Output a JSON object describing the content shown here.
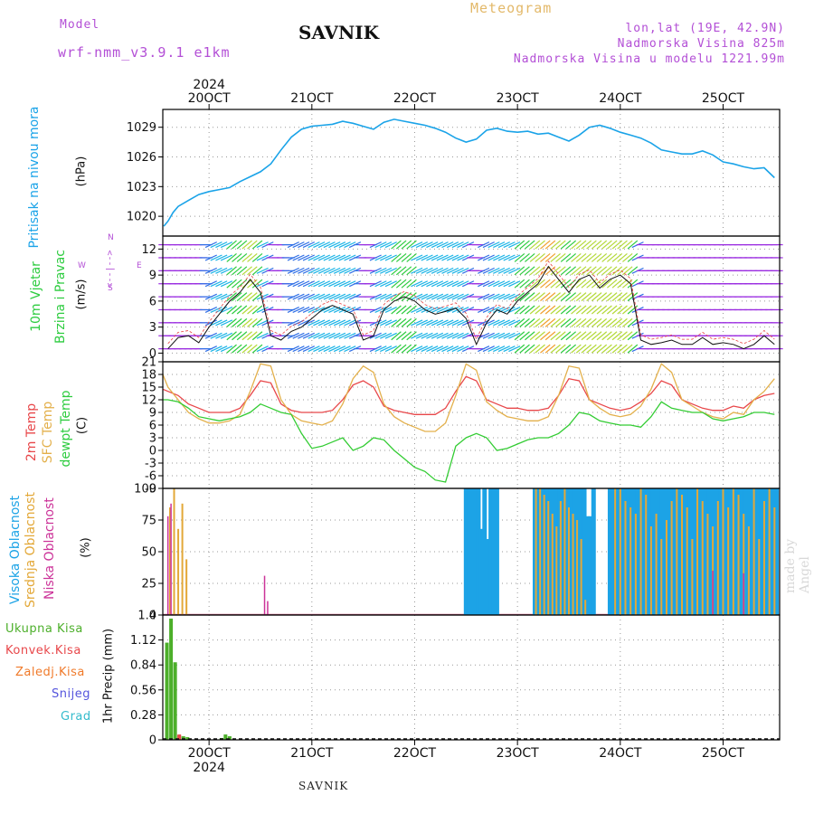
{
  "header": {
    "model_label": "Model",
    "model_name": "wrf-nmm_v3.9.1  e1km",
    "station": "SAVNIK",
    "chart_title": "Meteogram",
    "lonlat": "lon,lat (19E, 42.9N)",
    "elevation": "Nadmorska Visina 825m",
    "model_elevation": "Nadmorska Visina u modelu 1221.99m",
    "footer_station": "SAVNIK",
    "watermark": "made by Angel"
  },
  "colors": {
    "pressure": "#1aa3e8",
    "temp2m": "#e8474a",
    "sfc_temp": "#e3b04b",
    "dewpoint": "#33cc33",
    "high_cloud": "#1ca3e6",
    "mid_cloud": "#e3a838",
    "low_cloud": "#cc3399",
    "total_precip": "#4caf2a",
    "conv_precip": "#e8474a",
    "frozen_precip": "#f07a2a",
    "snow": "#5555dd",
    "grad": "#33bbcc",
    "grid": "#999999"
  },
  "x_axis": {
    "top_year": "2024",
    "bottom_year": "2024",
    "day_labels": [
      "20OCT",
      "21OCT",
      "22OCT",
      "23OCT",
      "24OCT",
      "25OCT"
    ],
    "day_positions": [
      20,
      21,
      22,
      23,
      24,
      25
    ],
    "range": [
      19.55,
      25.55
    ]
  },
  "panels": {
    "pressure": {
      "label": "Pritisak na nivou mora",
      "unit": "(hPa)"
    },
    "wind": {
      "label_line1": "10m Vjetar",
      "label_line2": "Brzina i Pravac",
      "unit": "(m/s)",
      "compass_n": "N",
      "compass_s": "S",
      "compass_e": "E",
      "compass_w": "W",
      "compass_arrow": "<--|-->"
    },
    "temperature": {
      "label_2m": "2m Temp",
      "label_sfc": "SFC Temp",
      "label_dew": "dewpt Temp",
      "unit": "(C)"
    },
    "clouds": {
      "label_high": "Visoka Oblacnost",
      "label_mid": "Srednja Oblacnost",
      "label_low": "Niska Oblacnost",
      "unit": "(%)"
    },
    "precip": {
      "legend": [
        "Ukupna Kisa",
        "Konvek.Kisa",
        "Zaledj.Kisa",
        "Snijeg",
        "Grad"
      ],
      "unit": "1hr Precip (mm)"
    }
  },
  "chart_data": [
    {
      "type": "line",
      "name": "pressure",
      "ylim": [
        1018,
        1030.8
      ],
      "yticks": [
        1020,
        1023,
        1026,
        1029
      ],
      "x": [
        19.56,
        19.6,
        19.65,
        19.7,
        19.8,
        19.9,
        20.0,
        20.1,
        20.2,
        20.3,
        20.4,
        20.5,
        20.6,
        20.7,
        20.8,
        20.9,
        21.0,
        21.1,
        21.2,
        21.3,
        21.4,
        21.5,
        21.6,
        21.7,
        21.8,
        21.9,
        22.0,
        22.1,
        22.2,
        22.3,
        22.4,
        22.5,
        22.6,
        22.7,
        22.8,
        22.9,
        23.0,
        23.1,
        23.2,
        23.3,
        23.4,
        23.5,
        23.6,
        23.7,
        23.8,
        23.9,
        24.0,
        24.1,
        24.2,
        24.3,
        24.4,
        24.5,
        24.6,
        24.7,
        24.8,
        24.9,
        25.0,
        25.1,
        25.2,
        25.3,
        25.4,
        25.5
      ],
      "series": [
        {
          "values": [
            1019.0,
            1019.5,
            1020.4,
            1021.0,
            1021.6,
            1022.2,
            1022.5,
            1022.7,
            1022.9,
            1023.5,
            1024.0,
            1024.5,
            1025.3,
            1026.7,
            1028.0,
            1028.8,
            1029.1,
            1029.2,
            1029.3,
            1029.6,
            1029.4,
            1029.1,
            1028.8,
            1029.5,
            1029.8,
            1029.6,
            1029.4,
            1029.2,
            1028.9,
            1028.5,
            1027.9,
            1027.5,
            1027.8,
            1028.7,
            1028.9,
            1028.6,
            1028.5,
            1028.6,
            1028.3,
            1028.4,
            1028.0,
            1027.6,
            1028.2,
            1029.0,
            1029.2,
            1028.9,
            1028.5,
            1028.2,
            1027.9,
            1027.4,
            1026.7,
            1026.5,
            1026.3,
            1026.3,
            1026.6,
            1026.2,
            1025.5,
            1025.3,
            1025.0,
            1024.8,
            1024.9,
            1023.9
          ]
        }
      ]
    },
    {
      "type": "line",
      "name": "wind_speed",
      "ylim": [
        -1,
        13.5
      ],
      "yticks": [
        0,
        3,
        6,
        9,
        12
      ],
      "x": [
        19.6,
        19.7,
        19.8,
        19.9,
        20.0,
        20.1,
        20.2,
        20.3,
        20.4,
        20.5,
        20.6,
        20.7,
        20.8,
        20.9,
        21.0,
        21.1,
        21.2,
        21.3,
        21.4,
        21.5,
        21.6,
        21.7,
        21.8,
        21.9,
        22.0,
        22.1,
        22.2,
        22.3,
        22.4,
        22.5,
        22.6,
        22.7,
        22.8,
        22.9,
        23.0,
        23.1,
        23.2,
        23.3,
        23.4,
        23.5,
        23.6,
        23.7,
        23.8,
        23.9,
        24.0,
        24.1,
        24.2,
        24.3,
        24.4,
        24.5,
        24.6,
        24.7,
        24.8,
        24.9,
        25.0,
        25.1,
        25.2,
        25.3,
        25.4,
        25.5
      ],
      "series": [
        {
          "values": [
            0.5,
            1.8,
            2.0,
            1.2,
            3.0,
            4.5,
            6.0,
            7.0,
            8.5,
            7.0,
            2.0,
            1.5,
            2.5,
            3.0,
            4.0,
            5.0,
            5.5,
            5.0,
            4.5,
            1.5,
            2.0,
            5.0,
            6.0,
            6.5,
            6.0,
            5.0,
            4.5,
            4.8,
            5.2,
            4.0,
            1.0,
            3.5,
            5.0,
            4.5,
            6.0,
            7.0,
            8.0,
            10.0,
            8.5,
            7.0,
            8.5,
            9.0,
            7.5,
            8.5,
            9.0,
            8.0,
            1.5,
            1.0,
            1.2,
            1.5,
            1.0,
            1.0,
            1.8,
            1.0,
            1.2,
            1.0,
            0.5,
            1.0,
            2.0,
            1.0
          ]
        }
      ]
    },
    {
      "type": "line",
      "name": "temperature",
      "ylim": [
        -9,
        21
      ],
      "yticks": [
        -9,
        -6,
        -3,
        0,
        3,
        6,
        9,
        12,
        15,
        18,
        21
      ],
      "x": [
        19.55,
        19.6,
        19.7,
        19.8,
        19.9,
        20.0,
        20.1,
        20.2,
        20.3,
        20.4,
        20.5,
        20.6,
        20.7,
        20.8,
        20.9,
        21.0,
        21.1,
        21.2,
        21.3,
        21.4,
        21.5,
        21.6,
        21.7,
        21.8,
        21.9,
        22.0,
        22.1,
        22.2,
        22.3,
        22.4,
        22.5,
        22.6,
        22.7,
        22.8,
        22.9,
        23.0,
        23.1,
        23.2,
        23.3,
        23.4,
        23.5,
        23.6,
        23.7,
        23.8,
        23.9,
        24.0,
        24.1,
        24.2,
        24.3,
        24.4,
        24.5,
        24.6,
        24.7,
        24.8,
        24.9,
        25.0,
        25.1,
        25.2,
        25.3,
        25.4,
        25.5
      ],
      "series": [
        {
          "name": "2m Temp",
          "values": [
            14.5,
            14,
            13,
            11,
            10,
            9,
            9,
            9,
            10,
            13,
            16.5,
            16,
            11,
            9.5,
            9,
            9,
            9,
            9.5,
            12,
            15.5,
            16.5,
            15,
            10.5,
            9.5,
            9,
            8.5,
            8.5,
            8.5,
            10,
            14,
            17.5,
            16.5,
            12,
            11,
            10,
            10,
            9.5,
            9.5,
            10,
            13,
            17,
            16.5,
            12,
            11,
            10,
            9.5,
            10,
            11.5,
            13.5,
            16.5,
            15.5,
            12,
            11,
            10,
            9.5,
            9.5,
            10.5,
            10,
            12,
            13,
            13.5
          ]
        },
        {
          "name": "SFC Temp",
          "values": [
            18,
            15,
            12,
            9,
            7.5,
            6.5,
            6.5,
            7,
            8.5,
            14,
            20.5,
            20,
            12,
            8.5,
            7,
            6.5,
            6,
            7,
            11,
            17,
            20,
            18.5,
            11,
            8,
            6.5,
            5.5,
            4.5,
            4.5,
            6.5,
            13,
            20.5,
            19,
            11.5,
            9.5,
            8,
            7.5,
            7,
            7,
            8,
            13,
            20,
            19.5,
            12,
            10,
            8.5,
            8,
            8.5,
            10.5,
            14.5,
            20.5,
            18.5,
            12,
            10.5,
            9,
            8,
            7.5,
            9,
            8.5,
            12,
            14,
            17
          ]
        },
        {
          "name": "dewpt Temp",
          "values": [
            12,
            12,
            11.5,
            10,
            8,
            7.5,
            7,
            7.5,
            8,
            9,
            11,
            10,
            9,
            8.5,
            4,
            0.5,
            1,
            2,
            3,
            0,
            1,
            3,
            2.5,
            0,
            -2,
            -4,
            -5,
            -7,
            -7.5,
            1,
            3,
            4,
            3,
            0,
            0.5,
            1.5,
            2.5,
            3,
            3,
            4,
            6,
            9,
            8.5,
            7,
            6.5,
            6,
            6,
            5.5,
            8,
            11.5,
            10,
            9.5,
            9,
            9,
            7.5,
            7,
            7.5,
            8,
            9,
            9,
            8.5
          ]
        }
      ]
    },
    {
      "type": "bar",
      "name": "clouds",
      "ylim": [
        0,
        100
      ],
      "yticks": [
        0,
        25,
        50,
        75,
        100
      ],
      "series": [
        {
          "name": "Visoka Oblacnost",
          "x": [
            22.5,
            22.53,
            22.56,
            22.59,
            22.62,
            22.65,
            22.68,
            22.71,
            22.74,
            22.77,
            22.8,
            23.17,
            23.2,
            23.23,
            23.26,
            23.29,
            23.32,
            23.35,
            23.38,
            23.41,
            23.44,
            23.47,
            23.5,
            23.53,
            23.56,
            23.59,
            23.62,
            23.65,
            23.68,
            23.71,
            23.74,
            23.9,
            23.93,
            23.96,
            23.99,
            24.02,
            24.05,
            24.08,
            24.11,
            24.14,
            24.17,
            24.2,
            24.23,
            24.26,
            24.29,
            24.32,
            24.35,
            24.38,
            24.41,
            24.44,
            24.47,
            24.5,
            24.53,
            24.56,
            24.59,
            24.62,
            24.65,
            24.68,
            24.71,
            24.74,
            24.77,
            24.8,
            24.83,
            24.86,
            24.89,
            24.92,
            24.95,
            24.98,
            25.01,
            25.04,
            25.07,
            25.1,
            25.13,
            25.16,
            25.19,
            25.22,
            25.25,
            25.28,
            25.31,
            25.34,
            25.37,
            25.4,
            25.43,
            25.46,
            25.49,
            25.52
          ],
          "values": [
            100,
            100,
            100,
            100,
            100,
            68,
            100,
            60,
            100,
            100,
            100,
            100,
            100,
            100,
            100,
            100,
            100,
            100,
            100,
            100,
            100,
            100,
            100,
            100,
            100,
            100,
            100,
            100,
            78,
            78,
            100,
            100,
            100,
            100,
            100,
            100,
            100,
            100,
            100,
            100,
            100,
            100,
            100,
            100,
            100,
            100,
            100,
            100,
            100,
            100,
            100,
            100,
            100,
            100,
            100,
            100,
            100,
            100,
            100,
            100,
            100,
            100,
            100,
            100,
            100,
            100,
            100,
            100,
            100,
            100,
            100,
            100,
            100,
            100,
            100,
            100,
            100,
            100,
            100,
            100,
            100,
            100,
            100,
            100,
            100,
            100
          ]
        },
        {
          "name": "Srednja Oblacnost",
          "x": [
            19.62,
            19.66,
            19.7,
            19.74,
            19.78,
            23.18,
            23.22,
            23.26,
            23.3,
            23.34,
            23.38,
            23.42,
            23.46,
            23.5,
            23.54,
            23.58,
            23.62,
            23.66,
            23.95,
            24.0,
            24.05,
            24.1,
            24.15,
            24.2,
            24.25,
            24.3,
            24.35,
            24.4,
            24.45,
            24.5,
            24.55,
            24.6,
            24.65,
            24.7,
            24.75,
            24.8,
            24.85,
            24.9,
            24.95,
            25.0,
            25.05,
            25.1,
            25.15,
            25.2,
            25.25,
            25.3,
            25.35,
            25.4,
            25.45,
            25.5
          ],
          "values": [
            85,
            100,
            68,
            88,
            44,
            100,
            100,
            95,
            90,
            80,
            70,
            90,
            100,
            85,
            80,
            75,
            60,
            12,
            100,
            100,
            90,
            85,
            80,
            100,
            95,
            70,
            80,
            60,
            75,
            90,
            100,
            95,
            85,
            60,
            100,
            90,
            80,
            70,
            90,
            100,
            85,
            100,
            95,
            80,
            70,
            100,
            60,
            90,
            100,
            85
          ]
        },
        {
          "name": "Niska Oblacnost",
          "x": [
            19.6,
            19.63,
            20.54,
            20.57,
            24.9,
            25.2
          ],
          "values": [
            78,
            88,
            31,
            11,
            35,
            33
          ]
        }
      ]
    },
    {
      "type": "bar",
      "name": "precipitation",
      "ylim": [
        0,
        1.4
      ],
      "yticks": [
        0,
        0.28,
        0.56,
        0.84,
        1.12,
        1.4
      ],
      "series": [
        {
          "name": "Ukupna Kisa",
          "x": [
            19.59,
            19.63,
            19.67,
            19.71,
            19.75,
            19.79,
            20.12,
            20.16,
            20.2
          ],
          "values": [
            1.09,
            1.36,
            0.87,
            0.05,
            0.04,
            0.03,
            0.02,
            0.06,
            0.04
          ]
        },
        {
          "name": "Konvek.Kisa",
          "x": [
            19.71
          ],
          "values": [
            0.06
          ]
        }
      ]
    }
  ]
}
